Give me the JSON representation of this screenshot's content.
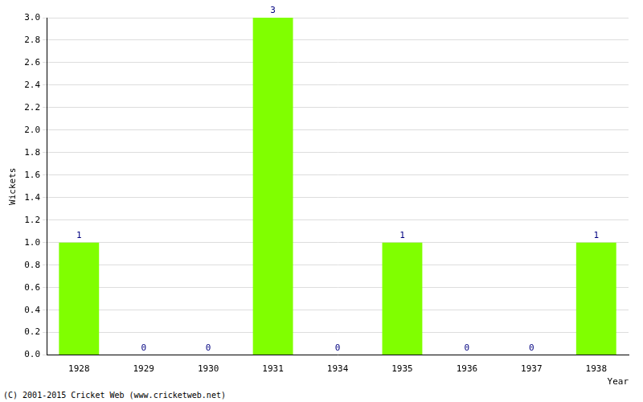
{
  "chart_data": {
    "type": "bar",
    "x_label": "Year",
    "y_label": "Wickets",
    "categories": [
      "1928",
      "1929",
      "1930",
      "1931",
      "1934",
      "1935",
      "1936",
      "1937",
      "1938"
    ],
    "values": [
      1,
      0,
      0,
      3,
      0,
      1,
      0,
      0,
      1
    ],
    "color": "#80ff00",
    "ylim": [
      0,
      3
    ],
    "yticks": [
      {
        "value": 0,
        "label": "0.0"
      },
      0.2,
      0.4,
      0.6,
      0.8,
      {
        "value": 1,
        "label": "1.0"
      },
      1.2,
      1.4,
      1.6,
      1.8,
      {
        "value": 2,
        "label": "2.0"
      },
      2.2,
      2.4,
      2.6,
      2.8,
      {
        "value": 3,
        "label": "3.0"
      }
    ],
    "grid": true,
    "data_labels": true,
    "annotations": [
      "(C) 2001-2015 Cricket Web (www.cricketweb.net)"
    ]
  }
}
